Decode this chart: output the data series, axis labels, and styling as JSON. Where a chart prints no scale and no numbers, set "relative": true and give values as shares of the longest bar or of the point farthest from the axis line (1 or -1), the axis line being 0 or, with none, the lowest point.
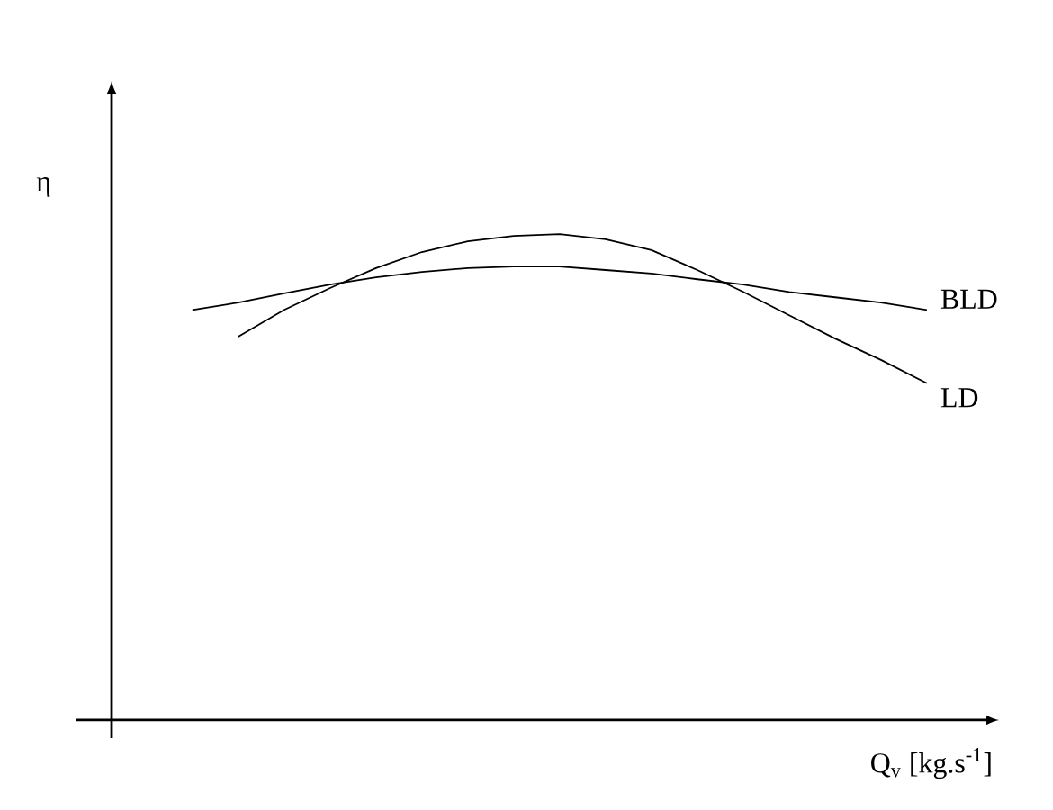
{
  "chart_data": {
    "type": "line",
    "relative": true,
    "xlabel": "Q$_{v}$ [kg.s$^{-1}$]",
    "ylabel": "η",
    "categories": [
      null,
      null,
      null,
      null,
      null,
      null,
      null,
      null,
      null,
      null,
      null,
      null,
      null,
      null,
      null,
      null,
      null
    ],
    "series": [
      {
        "name": "BLD",
        "color": "#000000",
        "values": [
          0.844,
          0.859,
          0.878,
          0.896,
          0.911,
          0.922,
          0.93,
          0.933,
          0.933,
          0.926,
          0.919,
          0.907,
          0.896,
          0.881,
          0.87,
          0.859,
          0.844
        ]
      },
      {
        "name": "LD",
        "color": "#000000",
        "values": [
          null,
          0.789,
          0.844,
          0.889,
          0.93,
          0.963,
          0.985,
          0.996,
          1,
          0.989,
          0.967,
          0.926,
          0.881,
          0.833,
          0.785,
          0.741,
          0.693
        ]
      }
    ]
  }
}
